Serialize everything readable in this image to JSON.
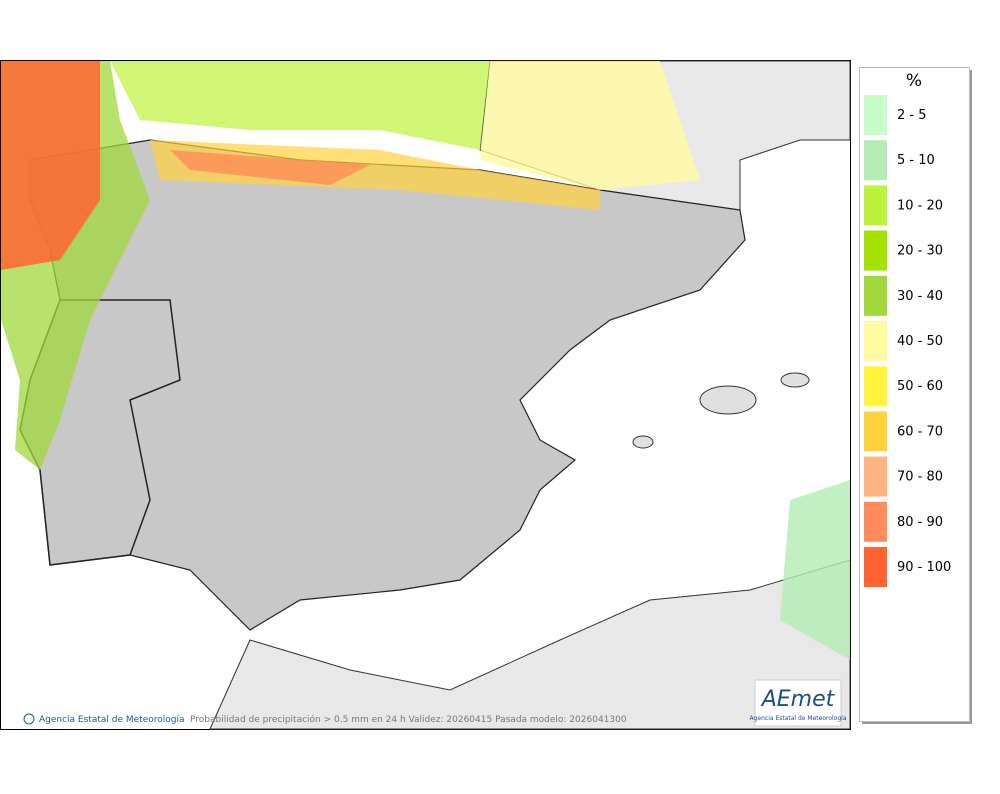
{
  "legend": {
    "unit": "%",
    "items": [
      {
        "label": "2 - 5",
        "color": "#c8fcc8"
      },
      {
        "label": "5 - 10",
        "color": "#b4ecb4"
      },
      {
        "label": "10 - 20",
        "color": "#bdf23c"
      },
      {
        "label": "20 - 30",
        "color": "#a4e000"
      },
      {
        "label": "30 - 40",
        "color": "#a2d83c"
      },
      {
        "label": "40 - 50",
        "color": "#fffaa0"
      },
      {
        "label": "50 - 60",
        "color": "#fff53c"
      },
      {
        "label": "60 - 70",
        "color": "#ffd23c"
      },
      {
        "label": "70 - 80",
        "color": "#ffb482"
      },
      {
        "label": "80 - 90",
        "color": "#ff8c5a"
      },
      {
        "label": "90 - 100",
        "color": "#ff6432"
      }
    ]
  },
  "footer": {
    "credit": "Agencia Estatal de Meteorología",
    "caption": "Probabilidad de precipitación > 0.5 mm en 24 h Validez: 20260415 Pasada modelo: 2026041300"
  },
  "logo": {
    "name": "AEmet",
    "subtitle": "Agencia Estatal de Meteorología"
  }
}
